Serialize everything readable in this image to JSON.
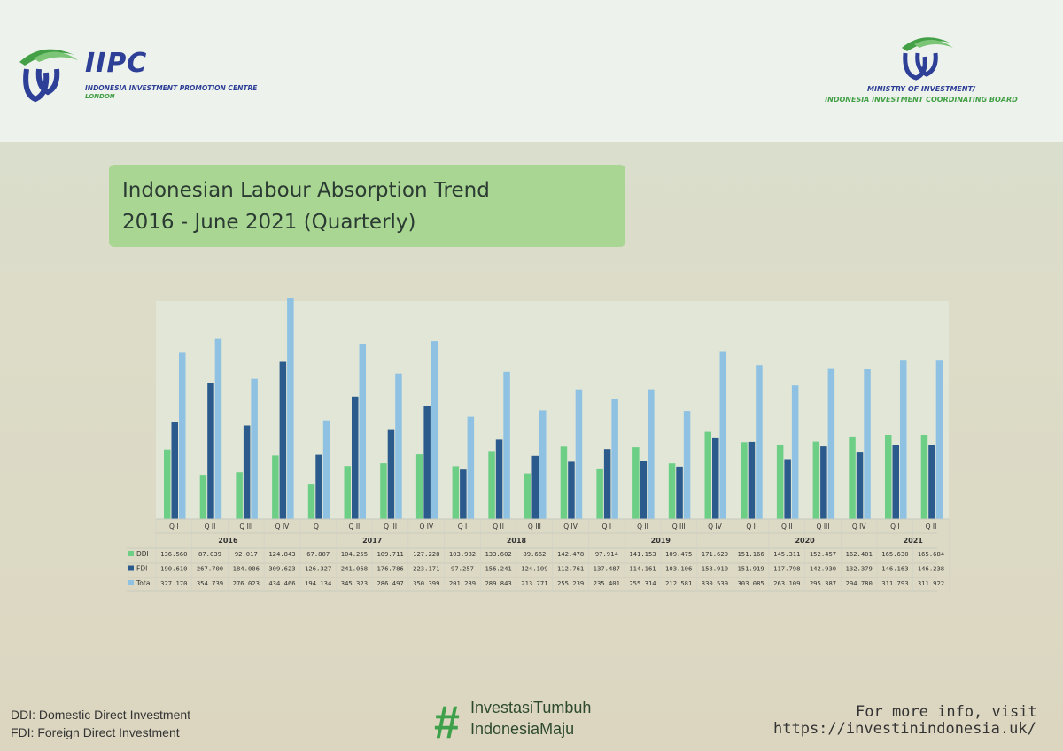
{
  "header": {
    "left_logo": {
      "brand": "IIPC",
      "line1": "INDONESIA INVESTMENT PROMOTION CENTRE",
      "line2": "LONDON"
    },
    "right_logo": {
      "line1": "MINISTRY OF INVESTMENT/",
      "line2": "INDONESIA INVESTMENT COORDINATING BOARD"
    }
  },
  "title": {
    "line1": "Indonesian Labour Absorption Trend",
    "line2": "2016 - June 2021 (Quarterly)"
  },
  "colors": {
    "ddi": "#6dcf86",
    "fdi": "#2b5a8c",
    "total": "#8fc2e2",
    "title_box": "#a9d693",
    "hashtag": "#3ea04a"
  },
  "chart_data": {
    "type": "bar",
    "categories": [
      "Q I",
      "Q II",
      "Q III",
      "Q IV",
      "Q I",
      "Q II",
      "Q III",
      "Q IV",
      "Q I",
      "Q II",
      "Q III",
      "Q IV",
      "Q I",
      "Q II",
      "Q III",
      "Q IV",
      "Q I",
      "Q II",
      "Q III",
      "Q IV",
      "Q I",
      "Q II"
    ],
    "groups": [
      {
        "label": "2016",
        "count": 4
      },
      {
        "label": "2017",
        "count": 4
      },
      {
        "label": "2018",
        "count": 4
      },
      {
        "label": "2019",
        "count": 4
      },
      {
        "label": "2020",
        "count": 4
      },
      {
        "label": "2021",
        "count": 2
      }
    ],
    "series": [
      {
        "name": "DDI",
        "values": [
          136560,
          87039,
          92017,
          124843,
          67807,
          104255,
          109711,
          127228,
          103982,
          133602,
          89662,
          142478,
          97914,
          141153,
          109475,
          171629,
          151166,
          145311,
          152457,
          162401,
          165630,
          165684
        ],
        "labels": [
          "136.560",
          "87.039",
          "92.017",
          "124.843",
          "67.807",
          "104.255",
          "109.711",
          "127.228",
          "103.982",
          "133.602",
          "89.662",
          "142.478",
          "97.914",
          "141.153",
          "109.475",
          "171.629",
          "151.166",
          "145.311",
          "152.457",
          "162.401",
          "165.630",
          "165.684"
        ]
      },
      {
        "name": "FDI",
        "values": [
          190610,
          267700,
          184006,
          309623,
          126327,
          241068,
          176786,
          223171,
          97257,
          156241,
          124109,
          112761,
          137487,
          114161,
          103106,
          158910,
          151919,
          117798,
          142930,
          132379,
          146163,
          146238
        ],
        "labels": [
          "190.610",
          "267.700",
          "184.006",
          "309.623",
          "126.327",
          "241.068",
          "176.786",
          "223.171",
          "97.257",
          "156.241",
          "124.109",
          "112.761",
          "137.487",
          "114.161",
          "103.106",
          "158.910",
          "151.919",
          "117.798",
          "142.930",
          "132.379",
          "146.163",
          "146.238"
        ]
      },
      {
        "name": "Total",
        "values": [
          327170,
          354739,
          276023,
          434466,
          194134,
          345323,
          286497,
          350399,
          201239,
          289843,
          213771,
          255239,
          235401,
          255314,
          212581,
          330539,
          303085,
          263109,
          295387,
          294780,
          311793,
          311922
        ],
        "labels": [
          "327.170",
          "354.739",
          "276.023",
          "434.466",
          "194.134",
          "345.323",
          "286.497",
          "350.399",
          "201.239",
          "289.843",
          "213.771",
          "255.239",
          "235.401",
          "255.314",
          "212.581",
          "330.539",
          "303.085",
          "263.109",
          "295.387",
          "294.780",
          "311.793",
          "311.922"
        ]
      }
    ],
    "ylim": [
      0,
      450000
    ],
    "legend": "data-table",
    "grid": false
  },
  "footnotes": {
    "ddi": "DDI: Domestic Direct Investment",
    "fdi": "FDI: Foreign Direct Investment"
  },
  "hashtag": {
    "symbol": "#",
    "line1": "InvestasiTumbuh",
    "line2": "IndonesiaMaju"
  },
  "more_info": {
    "line1": "For more info, visit",
    "url": "https://investinindonesia.uk/"
  }
}
